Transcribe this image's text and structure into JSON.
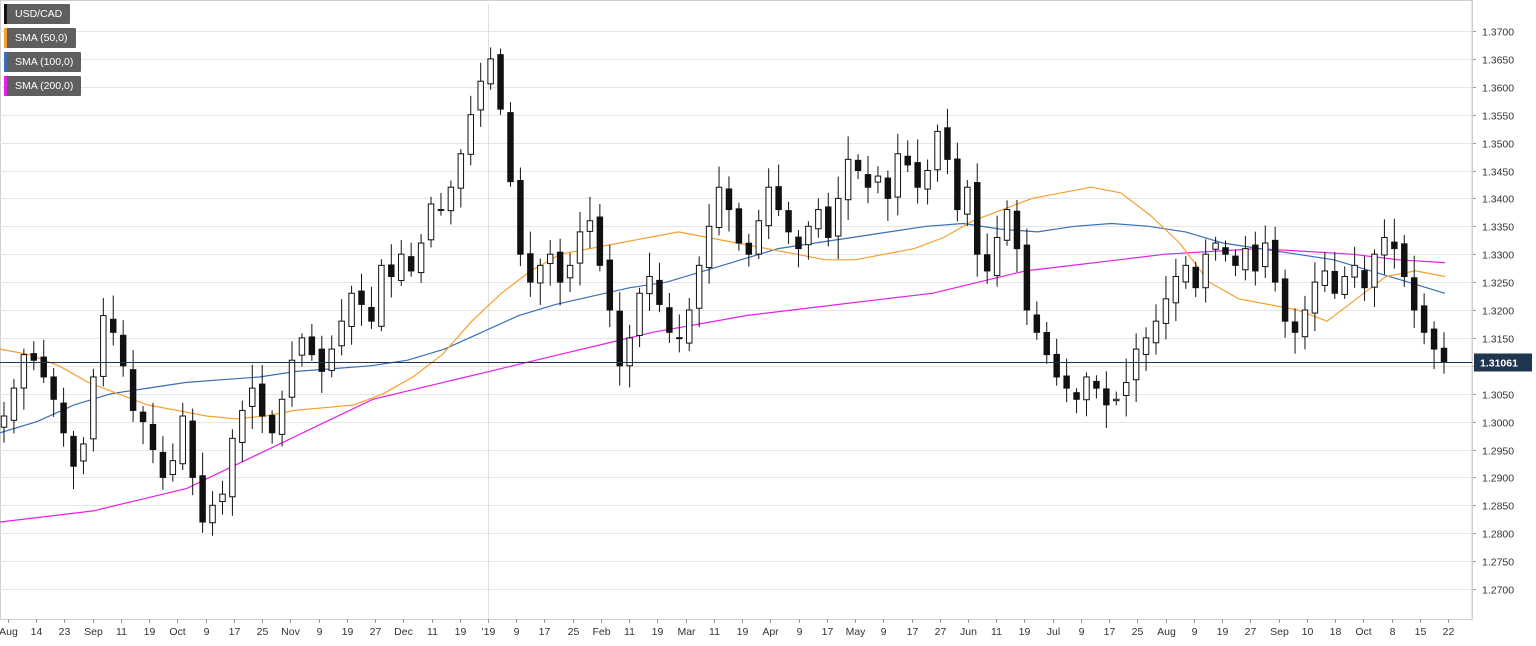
{
  "chart_data": {
    "type": "candlestick",
    "symbol": "USD/CAD",
    "last_price_label": "1.31061",
    "last_price": 1.31061,
    "y_range": [
      1.27,
      1.37
    ],
    "y_ticks": [
      "1.2700",
      "1.2750",
      "1.2800",
      "1.2850",
      "1.2900",
      "1.2950",
      "1.3000",
      "1.3050",
      "1.3100",
      "1.3150",
      "1.3200",
      "1.3250",
      "1.3300",
      "1.3350",
      "1.3400",
      "1.3450",
      "1.3500",
      "1.3550",
      "1.3600",
      "1.3650",
      "1.3700"
    ],
    "x_ticks": [
      "Aug",
      "14",
      "23",
      "Sep",
      "11",
      "19",
      "Oct",
      "9",
      "17",
      "25",
      "Nov",
      "9",
      "19",
      "27",
      "Dec",
      "11",
      "19",
      "'19",
      "9",
      "17",
      "25",
      "Feb",
      "11",
      "19",
      "Mar",
      "11",
      "19",
      "Apr",
      "9",
      "17",
      "May",
      "9",
      "17",
      "27",
      "Jun",
      "11",
      "19",
      "Jul",
      "9",
      "17",
      "25",
      "Aug",
      "9",
      "19",
      "27",
      "Sep",
      "10",
      "18",
      "Oct",
      "8",
      "15",
      "22"
    ],
    "grid": true,
    "legend_placement": "top-left",
    "legend": [
      {
        "label": "USD/CAD",
        "color": "#111111"
      },
      {
        "label": "SMA (50,0)",
        "color": "#f5a030"
      },
      {
        "label": "SMA (100,0)",
        "color": "#3a6fb5"
      },
      {
        "label": "SMA (200,0)",
        "color": "#e620e6"
      }
    ],
    "closes": [
      1.301,
      1.306,
      1.312,
      1.311,
      1.308,
      1.304,
      1.298,
      1.292,
      1.296,
      1.308,
      1.319,
      1.316,
      1.31,
      1.302,
      1.3,
      1.295,
      1.29,
      1.293,
      1.301,
      1.29,
      1.282,
      1.285,
      1.287,
      1.297,
      1.302,
      1.306,
      1.301,
      1.298,
      1.304,
      1.311,
      1.315,
      1.312,
      1.309,
      1.313,
      1.318,
      1.323,
      1.321,
      1.318,
      1.328,
      1.326,
      1.33,
      1.327,
      1.332,
      1.339,
      1.338,
      1.342,
      1.348,
      1.355,
      1.361,
      1.365,
      1.356,
      1.343,
      1.33,
      1.325,
      1.328,
      1.33,
      1.325,
      1.328,
      1.334,
      1.336,
      1.328,
      1.32,
      1.31,
      1.315,
      1.323,
      1.326,
      1.321,
      1.316,
      1.315,
      1.32,
      1.328,
      1.335,
      1.342,
      1.338,
      1.332,
      1.33,
      1.336,
      1.342,
      1.338,
      1.334,
      1.331,
      1.335,
      1.338,
      1.333,
      1.34,
      1.347,
      1.345,
      1.342,
      1.344,
      1.34,
      1.348,
      1.346,
      1.342,
      1.345,
      1.352,
      1.347,
      1.338,
      1.342,
      1.33,
      1.327,
      1.333,
      1.338,
      1.331,
      1.32,
      1.316,
      1.312,
      1.308,
      1.306,
      1.304,
      1.308,
      1.306,
      1.303,
      1.304,
      1.307,
      1.313,
      1.315,
      1.318,
      1.322,
      1.326,
      1.328,
      1.324,
      1.33,
      1.332,
      1.33,
      1.328,
      1.331,
      1.327,
      1.332,
      1.325,
      1.318,
      1.316,
      1.32,
      1.325,
      1.327,
      1.323,
      1.326,
      1.328,
      1.324,
      1.33,
      1.333,
      1.331,
      1.326,
      1.32,
      1.316,
      1.313,
      1.3106
    ],
    "sma50": [
      1.313,
      1.312,
      1.31,
      1.307,
      1.305,
      1.303,
      1.302,
      1.301,
      1.3005,
      1.301,
      1.302,
      1.3025,
      1.303,
      1.305,
      1.308,
      1.312,
      1.318,
      1.323,
      1.327,
      1.33,
      1.331,
      1.332,
      1.333,
      1.334,
      1.333,
      1.332,
      1.331,
      1.33,
      1.329,
      1.329,
      1.33,
      1.331,
      1.333,
      1.336,
      1.338,
      1.34,
      1.341,
      1.342,
      1.341,
      1.337,
      1.332,
      1.325,
      1.322,
      1.321,
      1.32,
      1.318,
      1.322,
      1.326,
      1.327,
      1.326
    ],
    "sma100": [
      1.298,
      1.3,
      1.303,
      1.305,
      1.306,
      1.307,
      1.3075,
      1.308,
      1.309,
      1.3095,
      1.31,
      1.311,
      1.313,
      1.316,
      1.319,
      1.321,
      1.3225,
      1.324,
      1.325,
      1.327,
      1.329,
      1.331,
      1.332,
      1.333,
      1.334,
      1.335,
      1.3355,
      1.3345,
      1.334,
      1.335,
      1.3355,
      1.335,
      1.334,
      1.332,
      1.331,
      1.33,
      1.329,
      1.327,
      1.325,
      1.323
    ],
    "sma200": [
      1.282,
      1.283,
      1.284,
      1.286,
      1.288,
      1.292,
      1.296,
      1.3,
      1.304,
      1.306,
      1.308,
      1.31,
      1.312,
      1.314,
      1.316,
      1.3175,
      1.319,
      1.32,
      1.321,
      1.322,
      1.323,
      1.325,
      1.327,
      1.328,
      1.329,
      1.33,
      1.3305,
      1.331,
      1.3305,
      1.33,
      1.329,
      1.3285
    ]
  }
}
